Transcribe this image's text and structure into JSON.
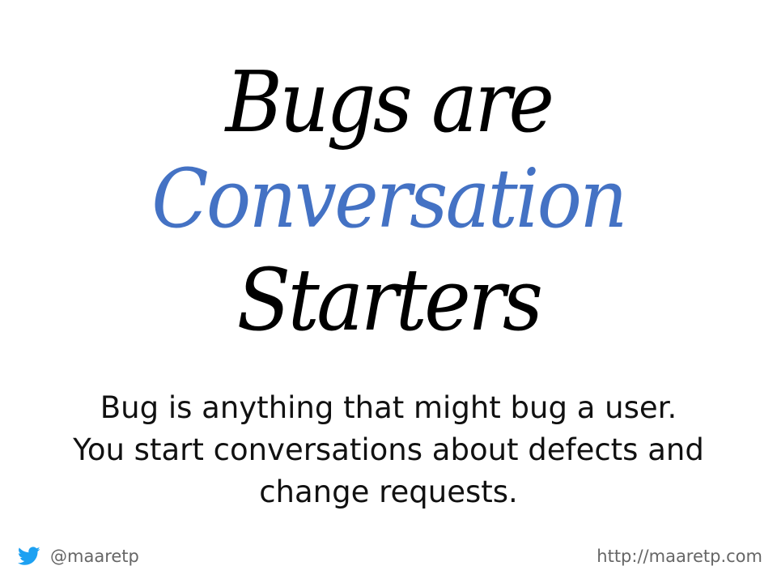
{
  "slide": {
    "title": {
      "line1": "Bugs are",
      "line2": "Conversation",
      "line3": "Starters",
      "accent_color": "#4472c4"
    },
    "body": {
      "line1": "Bug is anything that might bug a user.",
      "line2": "You start conversations about defects and",
      "line3": "change requests."
    },
    "footer": {
      "twitter_icon": "twitter-bird-icon",
      "twitter_icon_color": "#1da1f2",
      "handle": "@maaretp",
      "url": "http://maaretp.com"
    }
  }
}
